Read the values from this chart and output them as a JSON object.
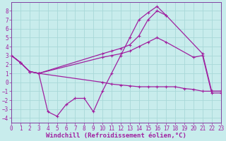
{
  "xlabel": "Windchill (Refroidissement éolien,°C)",
  "xlim": [
    0,
    23
  ],
  "ylim": [
    -4.5,
    9
  ],
  "xticks": [
    0,
    1,
    2,
    3,
    4,
    5,
    6,
    7,
    8,
    9,
    10,
    11,
    12,
    13,
    14,
    15,
    16,
    17,
    18,
    19,
    20,
    21,
    22,
    23
  ],
  "yticks": [
    -4,
    -3,
    -2,
    -1,
    0,
    1,
    2,
    3,
    4,
    5,
    6,
    7,
    8
  ],
  "bg_color": "#c8ecec",
  "grid_color": "#a8d8d8",
  "line_color": "#a020a0",
  "spine_color": "#8040a0",
  "lines": [
    {
      "x": [
        0,
        1,
        2,
        3,
        4,
        5,
        6,
        7,
        8,
        9,
        10,
        11,
        12,
        13,
        14,
        15,
        16,
        17
      ],
      "y": [
        3.0,
        2.2,
        1.2,
        1.0,
        -3.3,
        -3.8,
        -2.5,
        -1.8,
        -1.8,
        -3.3,
        -1.0,
        1.0,
        3.0,
        5.0,
        7.0,
        7.8,
        8.5,
        7.5
      ]
    },
    {
      "x": [
        0,
        1,
        2,
        3,
        10,
        11,
        12,
        13,
        14,
        15,
        16,
        17,
        18,
        19,
        20,
        21,
        22,
        23
      ],
      "y": [
        3.0,
        2.2,
        1.2,
        1.0,
        0.0,
        -0.2,
        -0.3,
        -0.4,
        -0.5,
        -0.5,
        -0.5,
        -0.5,
        -0.5,
        -0.7,
        -0.8,
        -1.0,
        -1.0,
        -1.0
      ]
    },
    {
      "x": [
        0,
        1,
        2,
        3,
        10,
        11,
        12,
        13,
        14,
        15,
        16,
        17,
        20,
        21,
        22,
        23
      ],
      "y": [
        3.0,
        2.2,
        1.2,
        1.0,
        2.8,
        3.0,
        3.2,
        3.5,
        4.0,
        4.5,
        5.0,
        4.5,
        2.8,
        3.0,
        -1.2,
        -1.2
      ]
    },
    {
      "x": [
        0,
        1,
        2,
        3,
        10,
        11,
        12,
        13,
        14,
        15,
        16,
        17,
        21,
        22,
        23
      ],
      "y": [
        3.0,
        2.2,
        1.2,
        1.0,
        3.2,
        3.5,
        3.8,
        4.2,
        5.2,
        7.0,
        8.0,
        7.5,
        3.2,
        -1.0,
        -1.0
      ]
    }
  ],
  "marker": "+",
  "marker_size": 3,
  "marker_edge_width": 0.8,
  "line_width": 0.9,
  "tick_fontsize": 5.5,
  "label_fontsize": 6.5
}
